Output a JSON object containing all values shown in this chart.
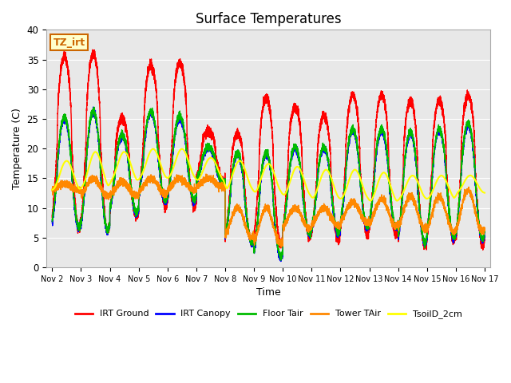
{
  "title": "Surface Temperatures",
  "xlabel": "Time",
  "ylabel": "Temperature (C)",
  "ylim": [
    0,
    40
  ],
  "background_color": "#e8e8e8",
  "annotation_text": "TZ_irt",
  "annotation_color": "#cc6600",
  "annotation_bg": "#ffffcc",
  "series": {
    "IRT Ground": {
      "color": "#ff0000",
      "lw": 1.0
    },
    "IRT Canopy": {
      "color": "#0000ff",
      "lw": 1.0
    },
    "Floor Tair": {
      "color": "#00bb00",
      "lw": 1.0
    },
    "Tower TAir": {
      "color": "#ff8800",
      "lw": 1.0
    },
    "TsoilD_2cm": {
      "color": "#ffff00",
      "lw": 1.5
    }
  },
  "xtick_labels": [
    "Nov 2",
    "Nov 3",
    "Nov 4",
    "Nov 5",
    "Nov 6",
    "Nov 7",
    "Nov 8",
    "Nov 9",
    "Nov 10",
    "Nov 11",
    "Nov 12",
    "Nov 13",
    "Nov 14",
    "Nov 15",
    "Nov 16",
    "Nov 17"
  ],
  "ytick_labels": [
    "0",
    "5",
    "10",
    "15",
    "20",
    "25",
    "30",
    "35",
    "40"
  ],
  "ytick_values": [
    0,
    5,
    10,
    15,
    20,
    25,
    30,
    35,
    40
  ]
}
